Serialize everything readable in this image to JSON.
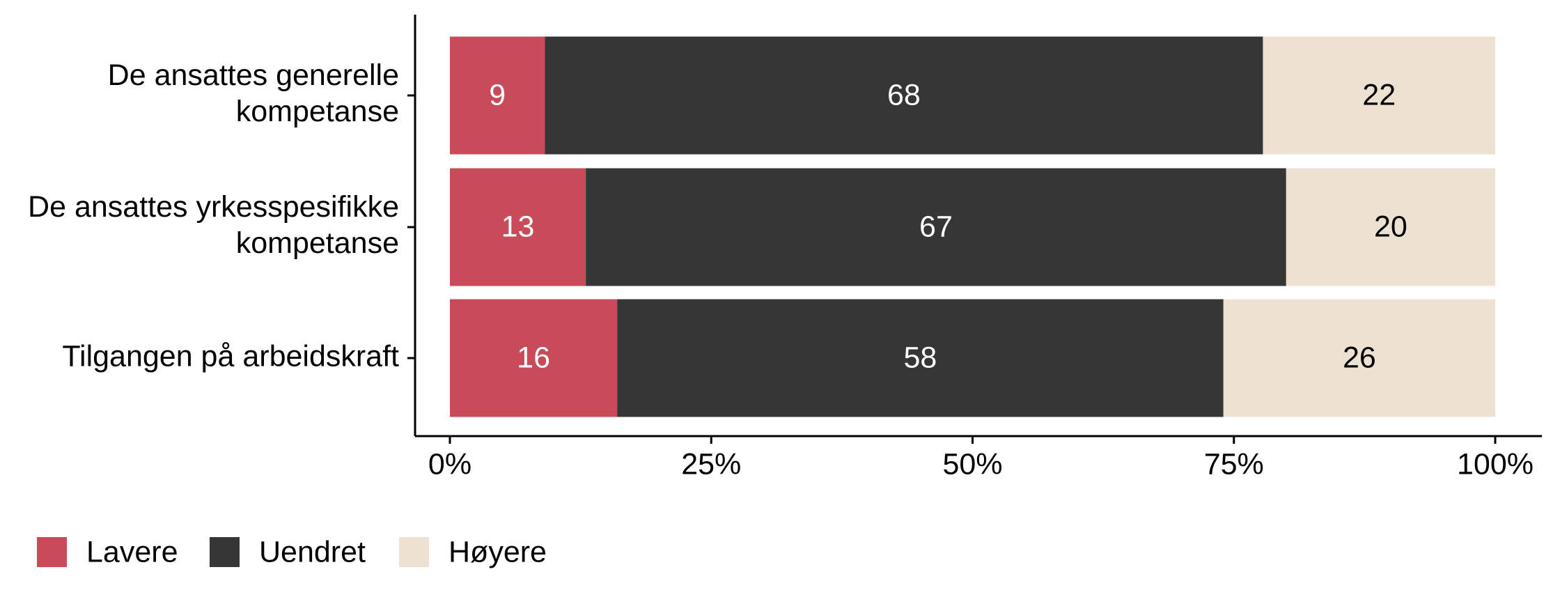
{
  "chart_data": {
    "type": "stacked-bar-horizontal",
    "categories": [
      "De ansattes generelle\nkompetanse",
      "De ansattes yrkesspesifikke\nkompetanse",
      "Tilgangen på arbeidskraft"
    ],
    "series": [
      {
        "name": "Lavere",
        "color": "#c84b5a",
        "label_color": "#ffffff",
        "values": [
          9,
          13,
          16
        ]
      },
      {
        "name": "Uendret",
        "color": "#363636",
        "label_color": "#ffffff",
        "values": [
          68,
          67,
          58
        ]
      },
      {
        "name": "Høyere",
        "color": "#ede1d1",
        "label_color": "#000000",
        "values": [
          22,
          20,
          26
        ]
      }
    ],
    "xlim": [
      0,
      100
    ],
    "xticks": [
      {
        "value": 0,
        "label": "0%"
      },
      {
        "value": 25,
        "label": "25%"
      },
      {
        "value": 50,
        "label": "50%"
      },
      {
        "value": 75,
        "label": "75%"
      },
      {
        "value": 100,
        "label": "100%"
      }
    ],
    "legend": "bottom-left"
  }
}
